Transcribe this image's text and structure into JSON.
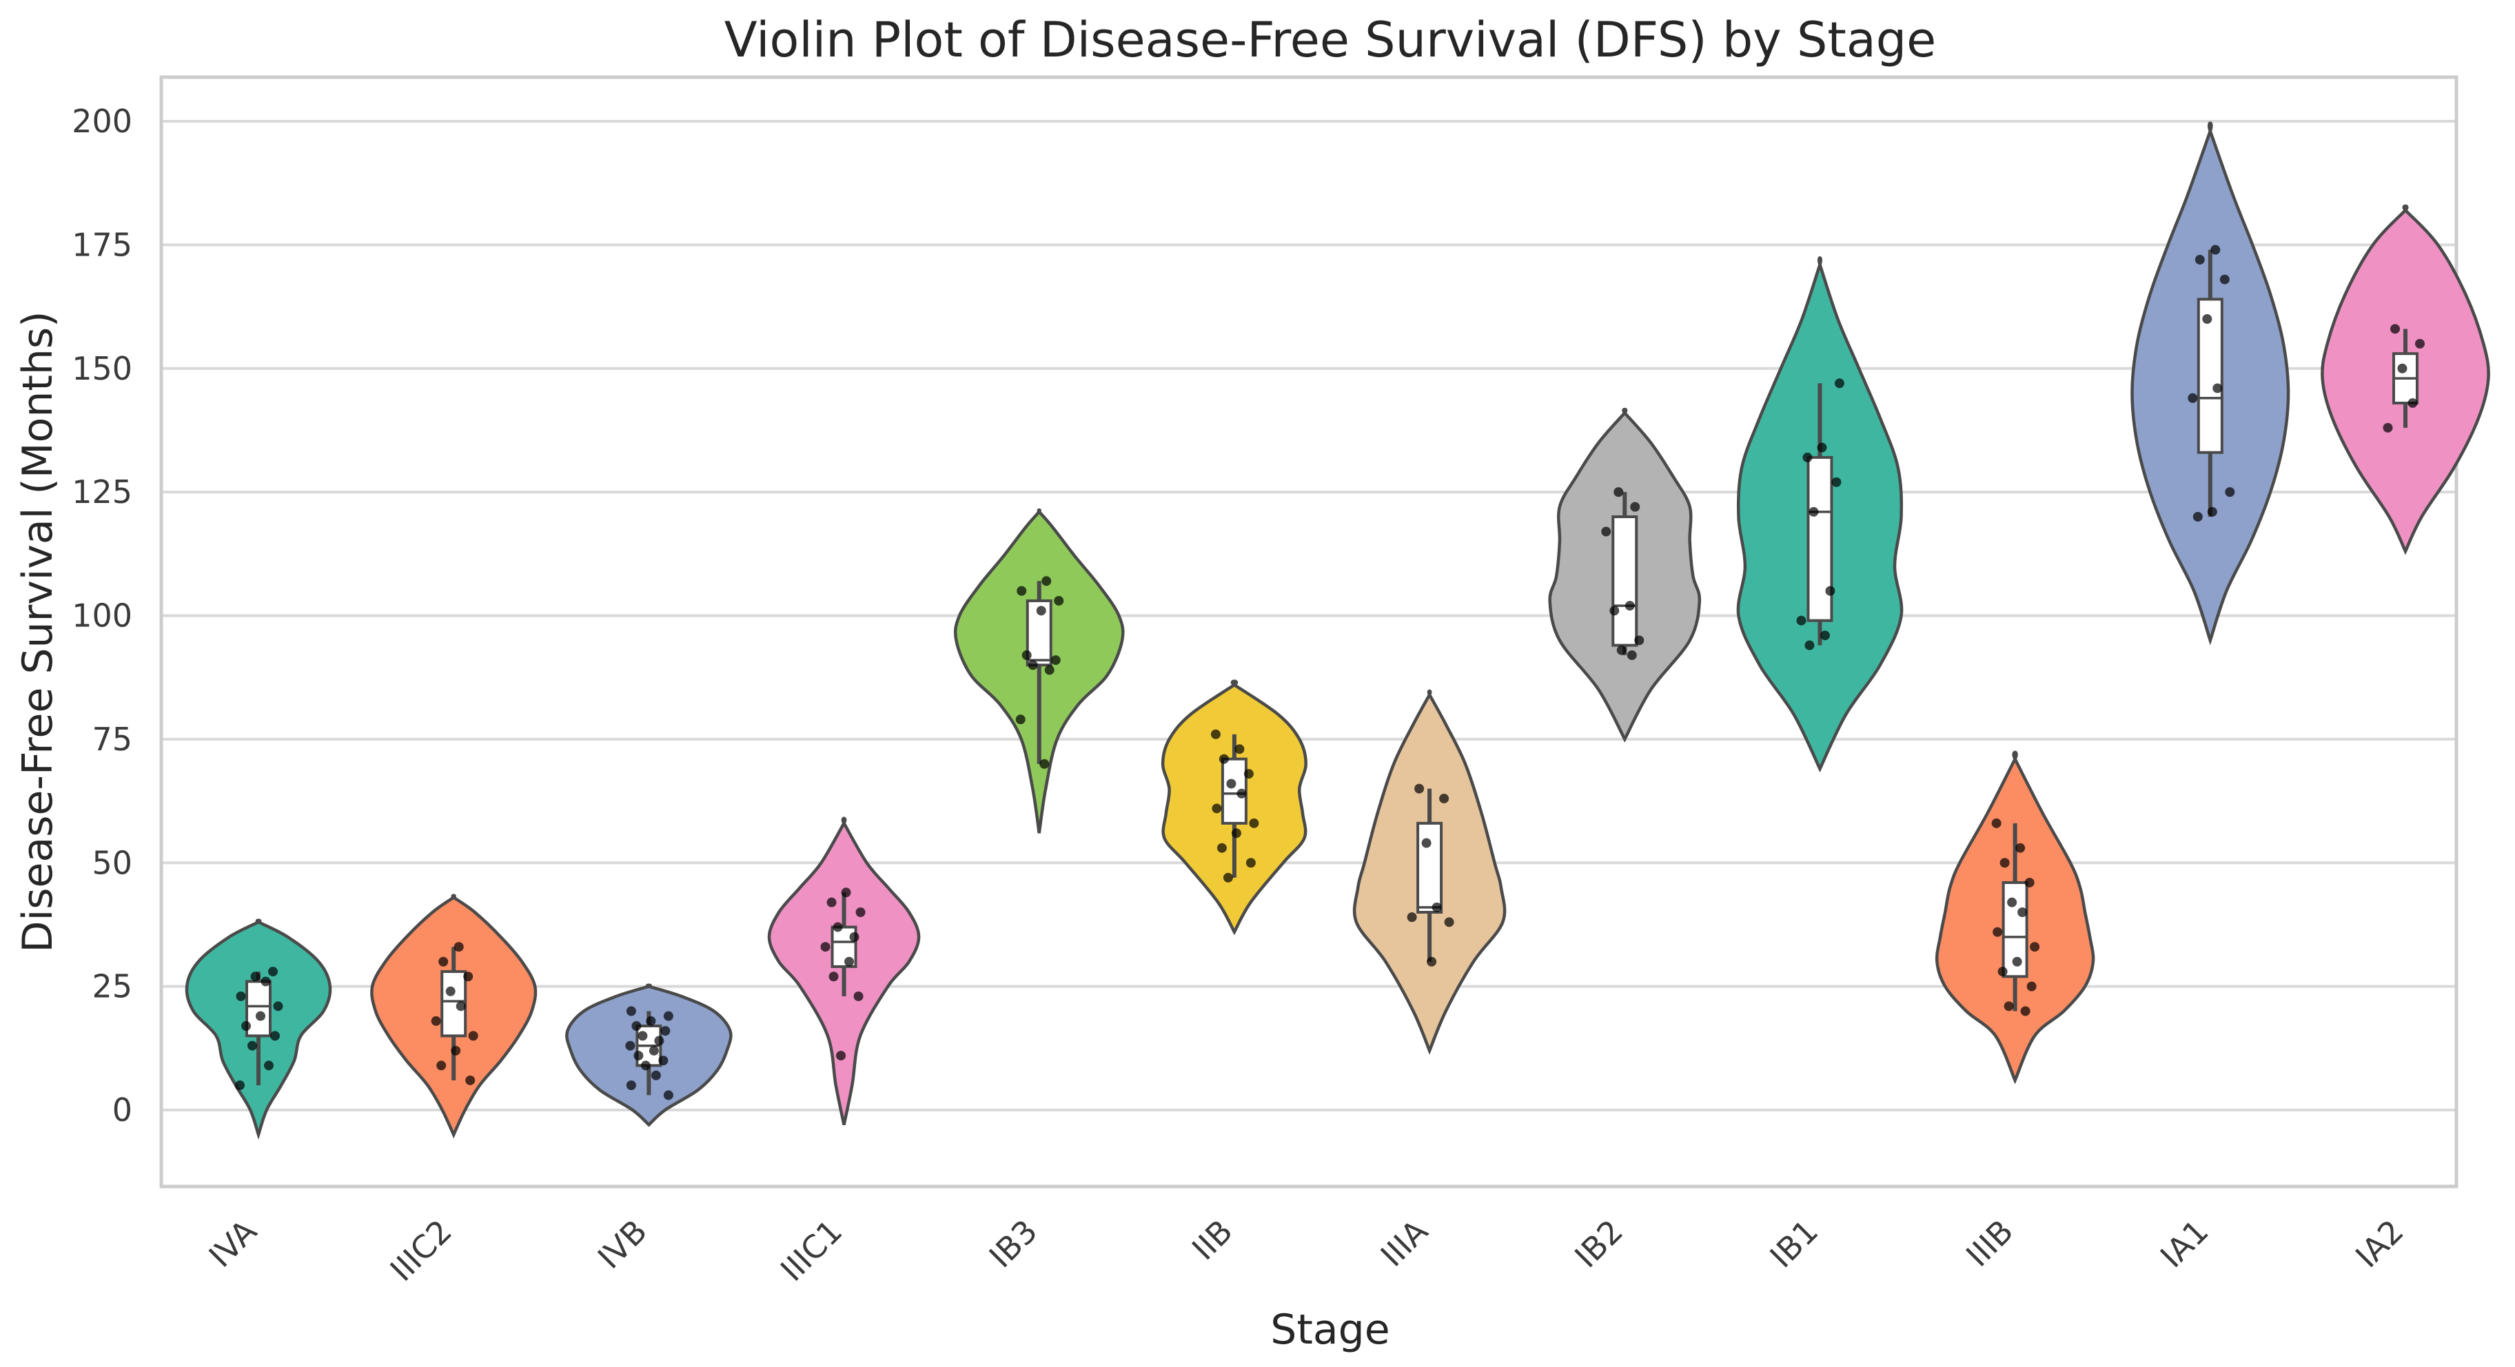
{
  "chart_data": {
    "type": "violin",
    "title": "Violin Plot of Disease-Free Survival (DFS) by Stage",
    "xlabel": "Stage",
    "ylabel": "Disease-Free Survival (Months)",
    "ylim": [
      -15,
      210
    ],
    "yticks": [
      0,
      25,
      50,
      75,
      100,
      125,
      150,
      175,
      200
    ],
    "grid": "y",
    "legend": "none",
    "categories": [
      {
        "name": "IVA",
        "color": "#3fb7a0",
        "violin": [
          [
            -5,
            0
          ],
          [
            0,
            5
          ],
          [
            5,
            14
          ],
          [
            10,
            22
          ],
          [
            15,
            26
          ],
          [
            20,
            40
          ],
          [
            25,
            44
          ],
          [
            30,
            37
          ],
          [
            35,
            18
          ],
          [
            38,
            0
          ]
        ],
        "box": {
          "q1": 15,
          "median": 21,
          "q3": 26,
          "whisker_low": 5,
          "whisker_high": 28
        },
        "points": [
          5,
          9,
          13,
          15,
          17,
          19,
          21,
          23,
          26,
          27,
          28
        ]
      },
      {
        "name": "IIIC2",
        "color": "#fc8c62",
        "violin": [
          [
            -5,
            0
          ],
          [
            0,
            7
          ],
          [
            5,
            16
          ],
          [
            10,
            29
          ],
          [
            15,
            40
          ],
          [
            20,
            48
          ],
          [
            25,
            50
          ],
          [
            30,
            42
          ],
          [
            35,
            29
          ],
          [
            40,
            13
          ],
          [
            43,
            0
          ]
        ],
        "box": {
          "q1": 15,
          "median": 22,
          "q3": 28,
          "whisker_low": 6,
          "whisker_high": 33
        },
        "points": [
          6,
          9,
          12,
          15,
          18,
          21,
          24,
          27,
          30,
          33
        ]
      },
      {
        "name": "IVB",
        "color": "#8ea1cb",
        "violin": [
          [
            -3,
            0
          ],
          [
            0,
            10
          ],
          [
            4,
            30
          ],
          [
            8,
            42
          ],
          [
            12,
            48
          ],
          [
            16,
            50
          ],
          [
            20,
            40
          ],
          [
            23,
            20
          ],
          [
            25,
            0
          ]
        ],
        "box": {
          "q1": 9,
          "median": 13,
          "q3": 17,
          "whisker_low": 3,
          "whisker_high": 20
        },
        "points": [
          3,
          5,
          7,
          9,
          10,
          11,
          12,
          13,
          14,
          15,
          16,
          17,
          18,
          19,
          20
        ]
      },
      {
        "name": "IIIC1",
        "color": "#ef92c3",
        "violin": [
          [
            -3,
            0
          ],
          [
            5,
            5
          ],
          [
            15,
            10
          ],
          [
            25,
            27
          ],
          [
            30,
            40
          ],
          [
            35,
            46
          ],
          [
            40,
            40
          ],
          [
            45,
            27
          ],
          [
            50,
            14
          ],
          [
            58,
            0
          ]
        ],
        "box": {
          "q1": 29,
          "median": 34,
          "q3": 37,
          "whisker_low": 23,
          "whisker_high": 44
        },
        "points": [
          11,
          23,
          27,
          30,
          33,
          35,
          37,
          40,
          42,
          44
        ]
      },
      {
        "name": "IB3",
        "color": "#8fc95a",
        "violin": [
          [
            56,
            0
          ],
          [
            65,
            4
          ],
          [
            75,
            11
          ],
          [
            82,
            24
          ],
          [
            88,
            42
          ],
          [
            95,
            51
          ],
          [
            100,
            49
          ],
          [
            106,
            37
          ],
          [
            112,
            22
          ],
          [
            118,
            8
          ],
          [
            121,
            0
          ]
        ],
        "box": {
          "q1": 90,
          "median": 91,
          "q3": 103,
          "whisker_low": 70,
          "whisker_high": 107
        },
        "points": [
          70,
          79,
          89,
          90,
          91,
          92,
          101,
          103,
          105,
          107
        ]
      },
      {
        "name": "IIB",
        "color": "#f1cb37",
        "violin": [
          [
            36,
            0
          ],
          [
            42,
            10
          ],
          [
            50,
            30
          ],
          [
            55,
            43
          ],
          [
            60,
            42
          ],
          [
            65,
            40
          ],
          [
            70,
            44
          ],
          [
            75,
            40
          ],
          [
            80,
            27
          ],
          [
            86,
            0
          ]
        ],
        "box": {
          "q1": 58,
          "median": 64,
          "q3": 71,
          "whisker_low": 47,
          "whisker_high": 76
        },
        "points": [
          47,
          50,
          53,
          56,
          58,
          61,
          64,
          66,
          68,
          71,
          73,
          76
        ]
      },
      {
        "name": "IIIA",
        "color": "#e6c49c",
        "violin": [
          [
            12,
            0
          ],
          [
            20,
            10
          ],
          [
            30,
            27
          ],
          [
            38,
            45
          ],
          [
            45,
            44
          ],
          [
            50,
            40
          ],
          [
            60,
            32
          ],
          [
            70,
            22
          ],
          [
            78,
            10
          ],
          [
            84,
            0
          ]
        ],
        "box": {
          "q1": 40,
          "median": 41,
          "q3": 58,
          "whisker_low": 30,
          "whisker_high": 65
        },
        "points": [
          30,
          38,
          39,
          41,
          54,
          63,
          65
        ]
      },
      {
        "name": "IB2",
        "color": "#b3b3b3",
        "violin": [
          [
            75,
            0
          ],
          [
            85,
            16
          ],
          [
            95,
            40
          ],
          [
            103,
            46
          ],
          [
            108,
            42
          ],
          [
            115,
            40
          ],
          [
            122,
            40
          ],
          [
            128,
            30
          ],
          [
            135,
            16
          ],
          [
            141,
            0
          ]
        ],
        "box": {
          "q1": 94,
          "median": 102,
          "q3": 120,
          "whisker_low": 92,
          "whisker_high": 125
        },
        "points": [
          92,
          93,
          95,
          101,
          102,
          117,
          122,
          125
        ]
      },
      {
        "name": "IB1",
        "color": "#3fb7a0",
        "violin": [
          [
            69,
            0
          ],
          [
            80,
            16
          ],
          [
            90,
            37
          ],
          [
            100,
            50
          ],
          [
            110,
            46
          ],
          [
            120,
            50
          ],
          [
            130,
            48
          ],
          [
            140,
            37
          ],
          [
            150,
            24
          ],
          [
            160,
            11
          ],
          [
            171,
            0
          ]
        ],
        "box": {
          "q1": 99,
          "median": 121,
          "q3": 132,
          "whisker_low": 94,
          "whisker_high": 147
        },
        "points": [
          94,
          96,
          99,
          105,
          121,
          127,
          132,
          134,
          147
        ]
      },
      {
        "name": "IIIB",
        "color": "#fc8c62",
        "violin": [
          [
            6,
            0
          ],
          [
            15,
            12
          ],
          [
            20,
            30
          ],
          [
            25,
            43
          ],
          [
            30,
            48
          ],
          [
            35,
            46
          ],
          [
            40,
            43
          ],
          [
            45,
            40
          ],
          [
            50,
            34
          ],
          [
            60,
            17
          ],
          [
            71,
            0
          ]
        ],
        "box": {
          "q1": 27,
          "median": 35,
          "q3": 46,
          "whisker_low": 20,
          "whisker_high": 58
        },
        "points": [
          20,
          21,
          25,
          28,
          30,
          33,
          36,
          40,
          42,
          46,
          50,
          53,
          58
        ]
      },
      {
        "name": "IA1",
        "color": "#8ea1cb",
        "violin": [
          [
            95,
            0
          ],
          [
            105,
            10
          ],
          [
            115,
            25
          ],
          [
            125,
            37
          ],
          [
            135,
            45
          ],
          [
            145,
            48
          ],
          [
            155,
            45
          ],
          [
            165,
            37
          ],
          [
            175,
            26
          ],
          [
            185,
            14
          ],
          [
            198,
            0
          ]
        ],
        "box": {
          "q1": 133,
          "median": 144,
          "q3": 164,
          "whisker_low": 120,
          "whisker_high": 174
        },
        "points": [
          120,
          121,
          125,
          144,
          146,
          160,
          168,
          172,
          174
        ]
      },
      {
        "name": "IA2",
        "color": "#ef92c3",
        "violin": [
          [
            113,
            0
          ],
          [
            120,
            10
          ],
          [
            130,
            30
          ],
          [
            140,
            45
          ],
          [
            148,
            51
          ],
          [
            155,
            48
          ],
          [
            165,
            37
          ],
          [
            175,
            20
          ],
          [
            182,
            0
          ]
        ],
        "box": {
          "q1": 143,
          "median": 148,
          "q3": 153,
          "whisker_low": 138,
          "whisker_high": 158
        },
        "points": [
          138,
          143,
          150,
          155,
          158
        ]
      }
    ]
  }
}
